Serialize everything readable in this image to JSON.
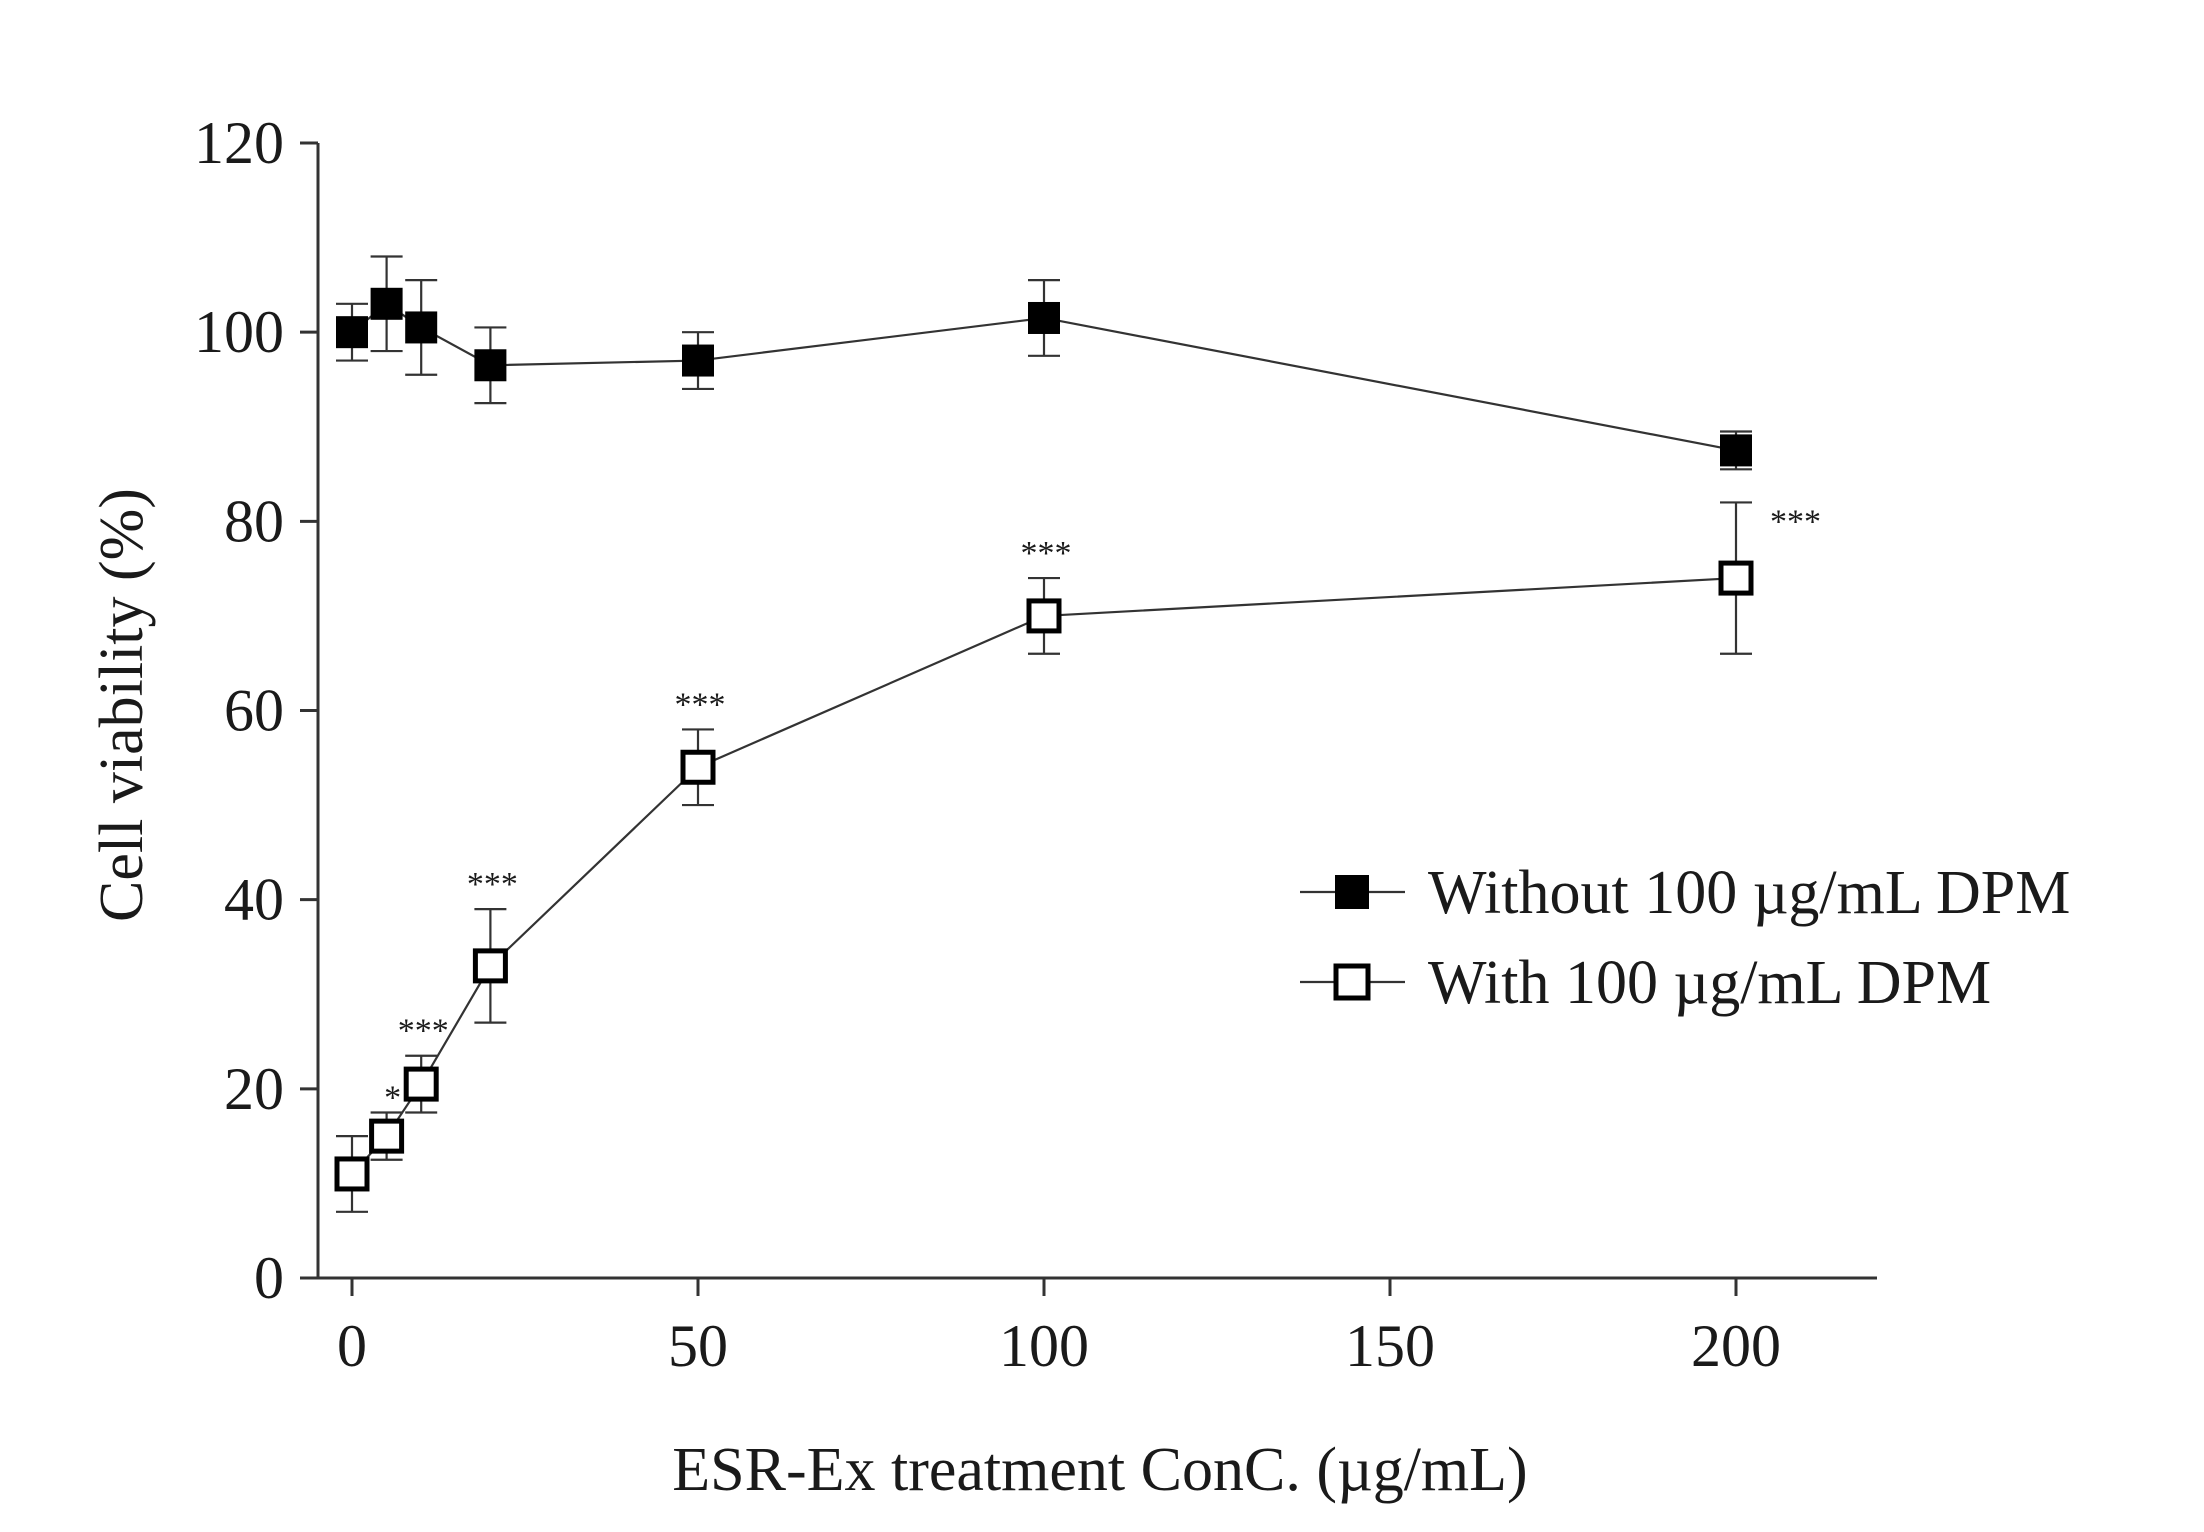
{
  "chart_data": {
    "type": "line",
    "title": "",
    "xlabel": "ESR-Ex treatment ConC. (µg/mL)",
    "ylabel": "Cell viability (%)",
    "xlim": [
      -10,
      220
    ],
    "ylim": [
      0,
      120
    ],
    "xticks": [
      0,
      50,
      100,
      150,
      200
    ],
    "yticks": [
      0,
      20,
      40,
      60,
      80,
      100,
      120
    ],
    "grid": false,
    "legend_position": "right-middle",
    "series": [
      {
        "name": "Without 100 µg/mL DPM",
        "marker": "filled-square",
        "x": [
          0,
          5,
          10,
          20,
          50,
          100,
          200
        ],
        "y": [
          100,
          103,
          100.5,
          96.5,
          97,
          101.5,
          87.5
        ],
        "err": [
          3,
          5,
          5,
          4,
          3,
          4,
          2
        ],
        "significance": [
          "",
          "",
          "",
          "",
          "",
          "",
          ""
        ]
      },
      {
        "name": "With 100 µg/mL DPM",
        "marker": "open-square",
        "x": [
          0,
          5,
          10,
          20,
          50,
          100,
          200
        ],
        "y": [
          11,
          15,
          20.5,
          33,
          54,
          70,
          74
        ],
        "err": [
          4,
          2.5,
          3,
          6,
          4,
          4,
          8
        ],
        "significance": [
          "",
          "*",
          "***",
          "***",
          "***",
          "***",
          "***"
        ]
      }
    ]
  }
}
